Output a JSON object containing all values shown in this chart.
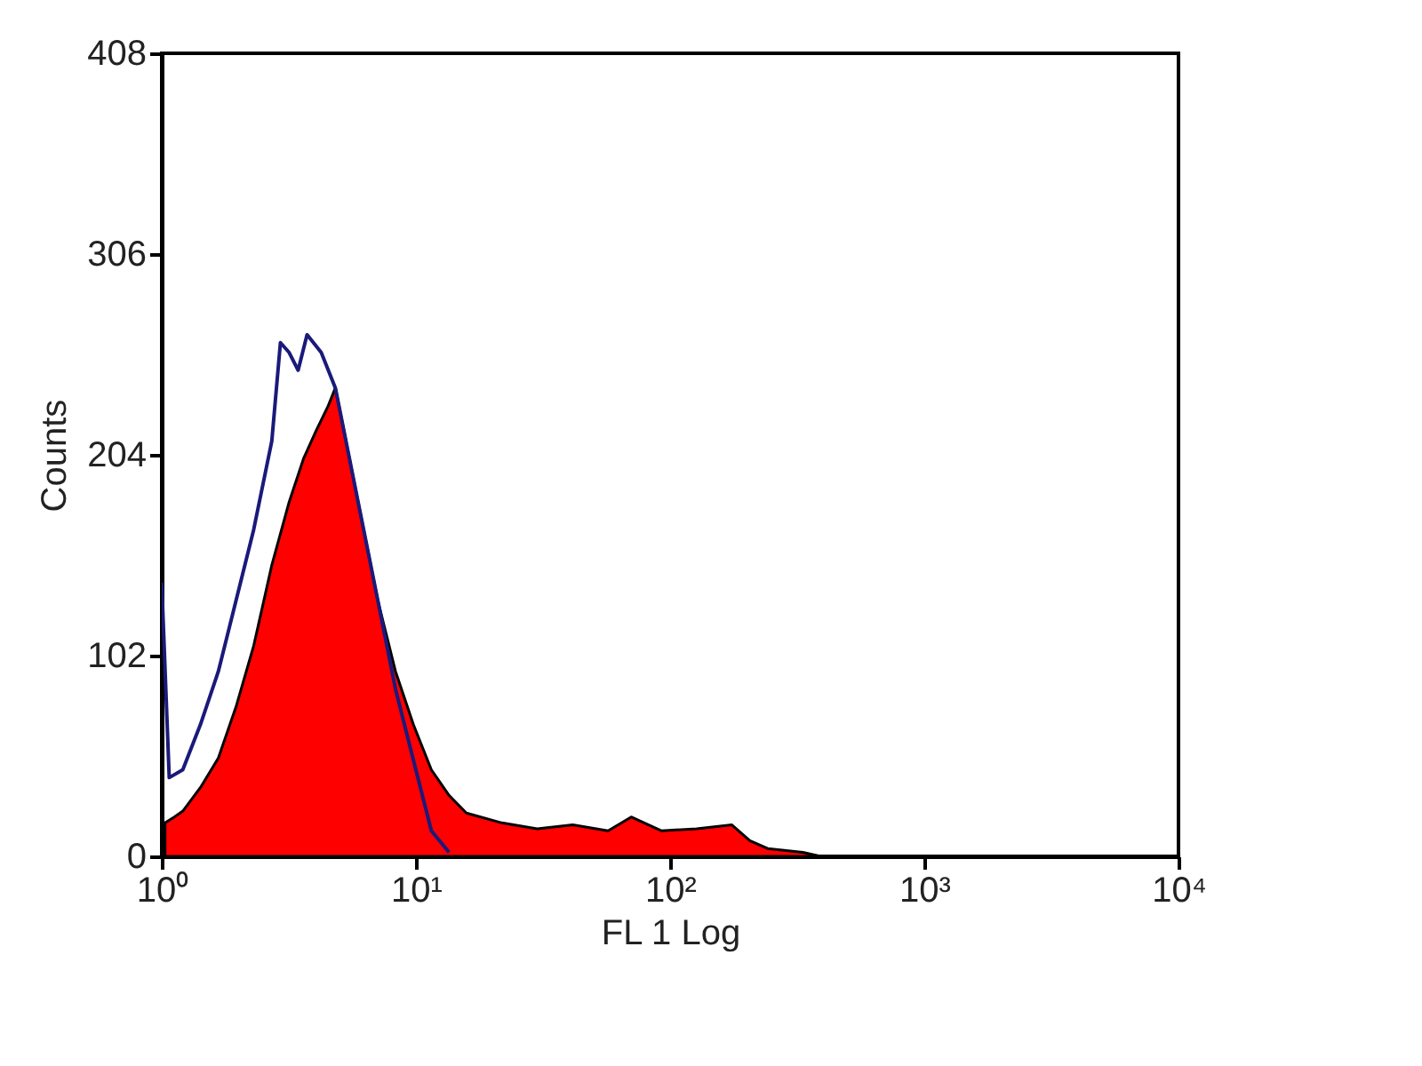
{
  "chart_data": {
    "type": "area",
    "xlabel": "FL 1 Log",
    "ylabel": "Counts",
    "log": "x",
    "grid": false,
    "xlim": [
      1,
      10000
    ],
    "xticks": [
      {
        "value": 1,
        "label": "10⁰"
      },
      {
        "value": 10,
        "label": "10¹"
      },
      {
        "value": 100,
        "label": "10²"
      },
      {
        "value": 1000,
        "label": "10³"
      },
      {
        "value": 10000,
        "label": "10⁴"
      }
    ],
    "ylim": [
      0,
      408
    ],
    "yticks": [
      0,
      102,
      204,
      306,
      408
    ],
    "series": [
      {
        "color": "#ff0000",
        "x": [
          1.03,
          1.12,
          1.21,
          1.42,
          1.67,
          1.96,
          2.3,
          2.71,
          3.17,
          3.61,
          4.04,
          4.52,
          4.82,
          5.14,
          6.03,
          7.08,
          8.31,
          9.77,
          11.5,
          13.5,
          15.8,
          21.8,
          30,
          41.4,
          57,
          70.3,
          92.3,
          127,
          175,
          206,
          242,
          333,
          391
        ],
        "values": [
          17,
          20,
          23,
          35,
          50,
          76,
          107,
          148,
          180,
          202,
          216,
          229,
          238,
          220,
          175,
          130,
          94,
          67,
          44,
          31,
          22,
          17,
          14,
          16,
          13,
          20,
          13,
          14,
          16,
          8,
          4,
          2,
          0
        ]
      },
      {
        "type": "line",
        "color": "#1a1a7a",
        "x": [
          1,
          1.07,
          1.21,
          1.42,
          1.67,
          1.96,
          2.3,
          2.71,
          2.93,
          3.17,
          3.44,
          3.73,
          4.24,
          4.82,
          6.03,
          7.08,
          8.31,
          9.77,
          11.5,
          13.5
        ],
        "values": [
          139,
          40,
          44,
          67,
          94,
          130,
          166,
          211,
          261,
          256,
          247,
          265,
          256,
          238,
          175,
          130,
          85,
          49,
          13,
          2
        ]
      }
    ]
  }
}
